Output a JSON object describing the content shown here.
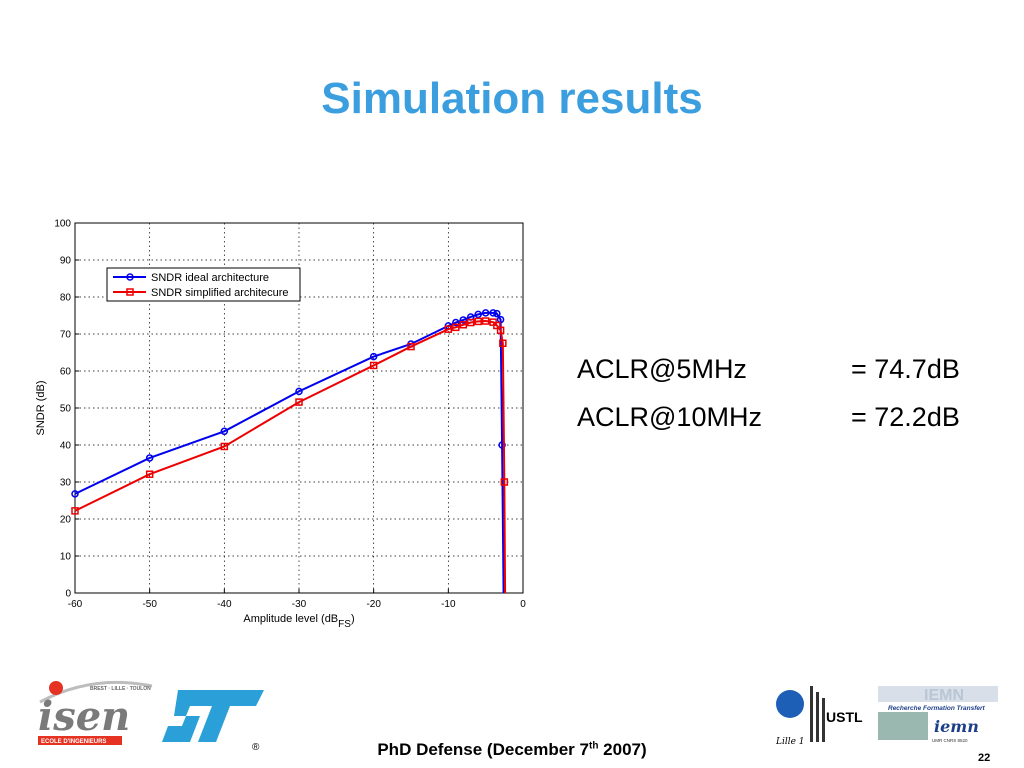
{
  "slide": {
    "title": "Simulation results",
    "footer_prefix": "PhD Defense (December 7",
    "footer_sup": "th",
    "footer_suffix": " 2007)",
    "page_number": "22"
  },
  "aclr": [
    {
      "label": "ACLR@5MHz",
      "value": "= 74.7dB"
    },
    {
      "label": "ACLR@10MHz",
      "value": "= 72.2dB"
    }
  ],
  "logos": {
    "isen_tagline": "BREST · LILLE · TOULON",
    "isen_name": "isen",
    "isen_subtitle": "ECOLE D'INGENIEURS",
    "st_name": "ST",
    "st_reg": "®",
    "ustl_name": "USTL",
    "lille_text": "Lille 1",
    "iemn_banner": "IEMN",
    "iemn_motto": "Recherche Formation Transfert",
    "iemn_name": "iemn",
    "iemn_sub": "UMR CNRS 8520"
  },
  "colors": {
    "title": "#3b9ede",
    "series1": "#0000ee",
    "series2": "#ee0000",
    "st_blue": "#2b9fd8"
  },
  "chart_data": {
    "type": "line",
    "xlabel_main": "Amplitude level (dB",
    "xlabel_sub": "FS",
    "xlabel_close": ")",
    "ylabel": "SNDR (dB)",
    "xlim": [
      -60,
      0
    ],
    "ylim": [
      0,
      100
    ],
    "x_ticks": [
      -60,
      -50,
      -40,
      -30,
      -20,
      -10,
      0
    ],
    "y_ticks": [
      0,
      10,
      20,
      30,
      40,
      50,
      60,
      70,
      80,
      90,
      100
    ],
    "grid": true,
    "legend_position": "top-left",
    "series": [
      {
        "name": "SNDR ideal architecture",
        "color": "#0000ee",
        "marker": "circle",
        "x": [
          -60,
          -50,
          -40,
          -30,
          -20,
          -15,
          -10,
          -9,
          -8,
          -7,
          -6,
          -5,
          -4,
          -3.5,
          -3,
          -2.8,
          -2.6
        ],
        "y": [
          26.8,
          36.5,
          43.7,
          54.5,
          63.9,
          67.3,
          72.2,
          73.1,
          73.8,
          74.6,
          75.3,
          75.7,
          75.7,
          75.5,
          73.9,
          40,
          0
        ]
      },
      {
        "name": "SNDR simplified architecure",
        "color": "#ee0000",
        "marker": "square",
        "x": [
          -60,
          -50,
          -40,
          -30,
          -20,
          -15,
          -10,
          -9,
          -8,
          -7,
          -6,
          -5,
          -4,
          -3.5,
          -3,
          -2.7,
          -2.5,
          -2.4
        ],
        "y": [
          22.2,
          32.1,
          39.6,
          51.6,
          61.5,
          66.6,
          71.3,
          71.8,
          72.5,
          73.1,
          73.4,
          73.5,
          73.2,
          72.3,
          71.0,
          67.5,
          30,
          0
        ]
      }
    ]
  }
}
